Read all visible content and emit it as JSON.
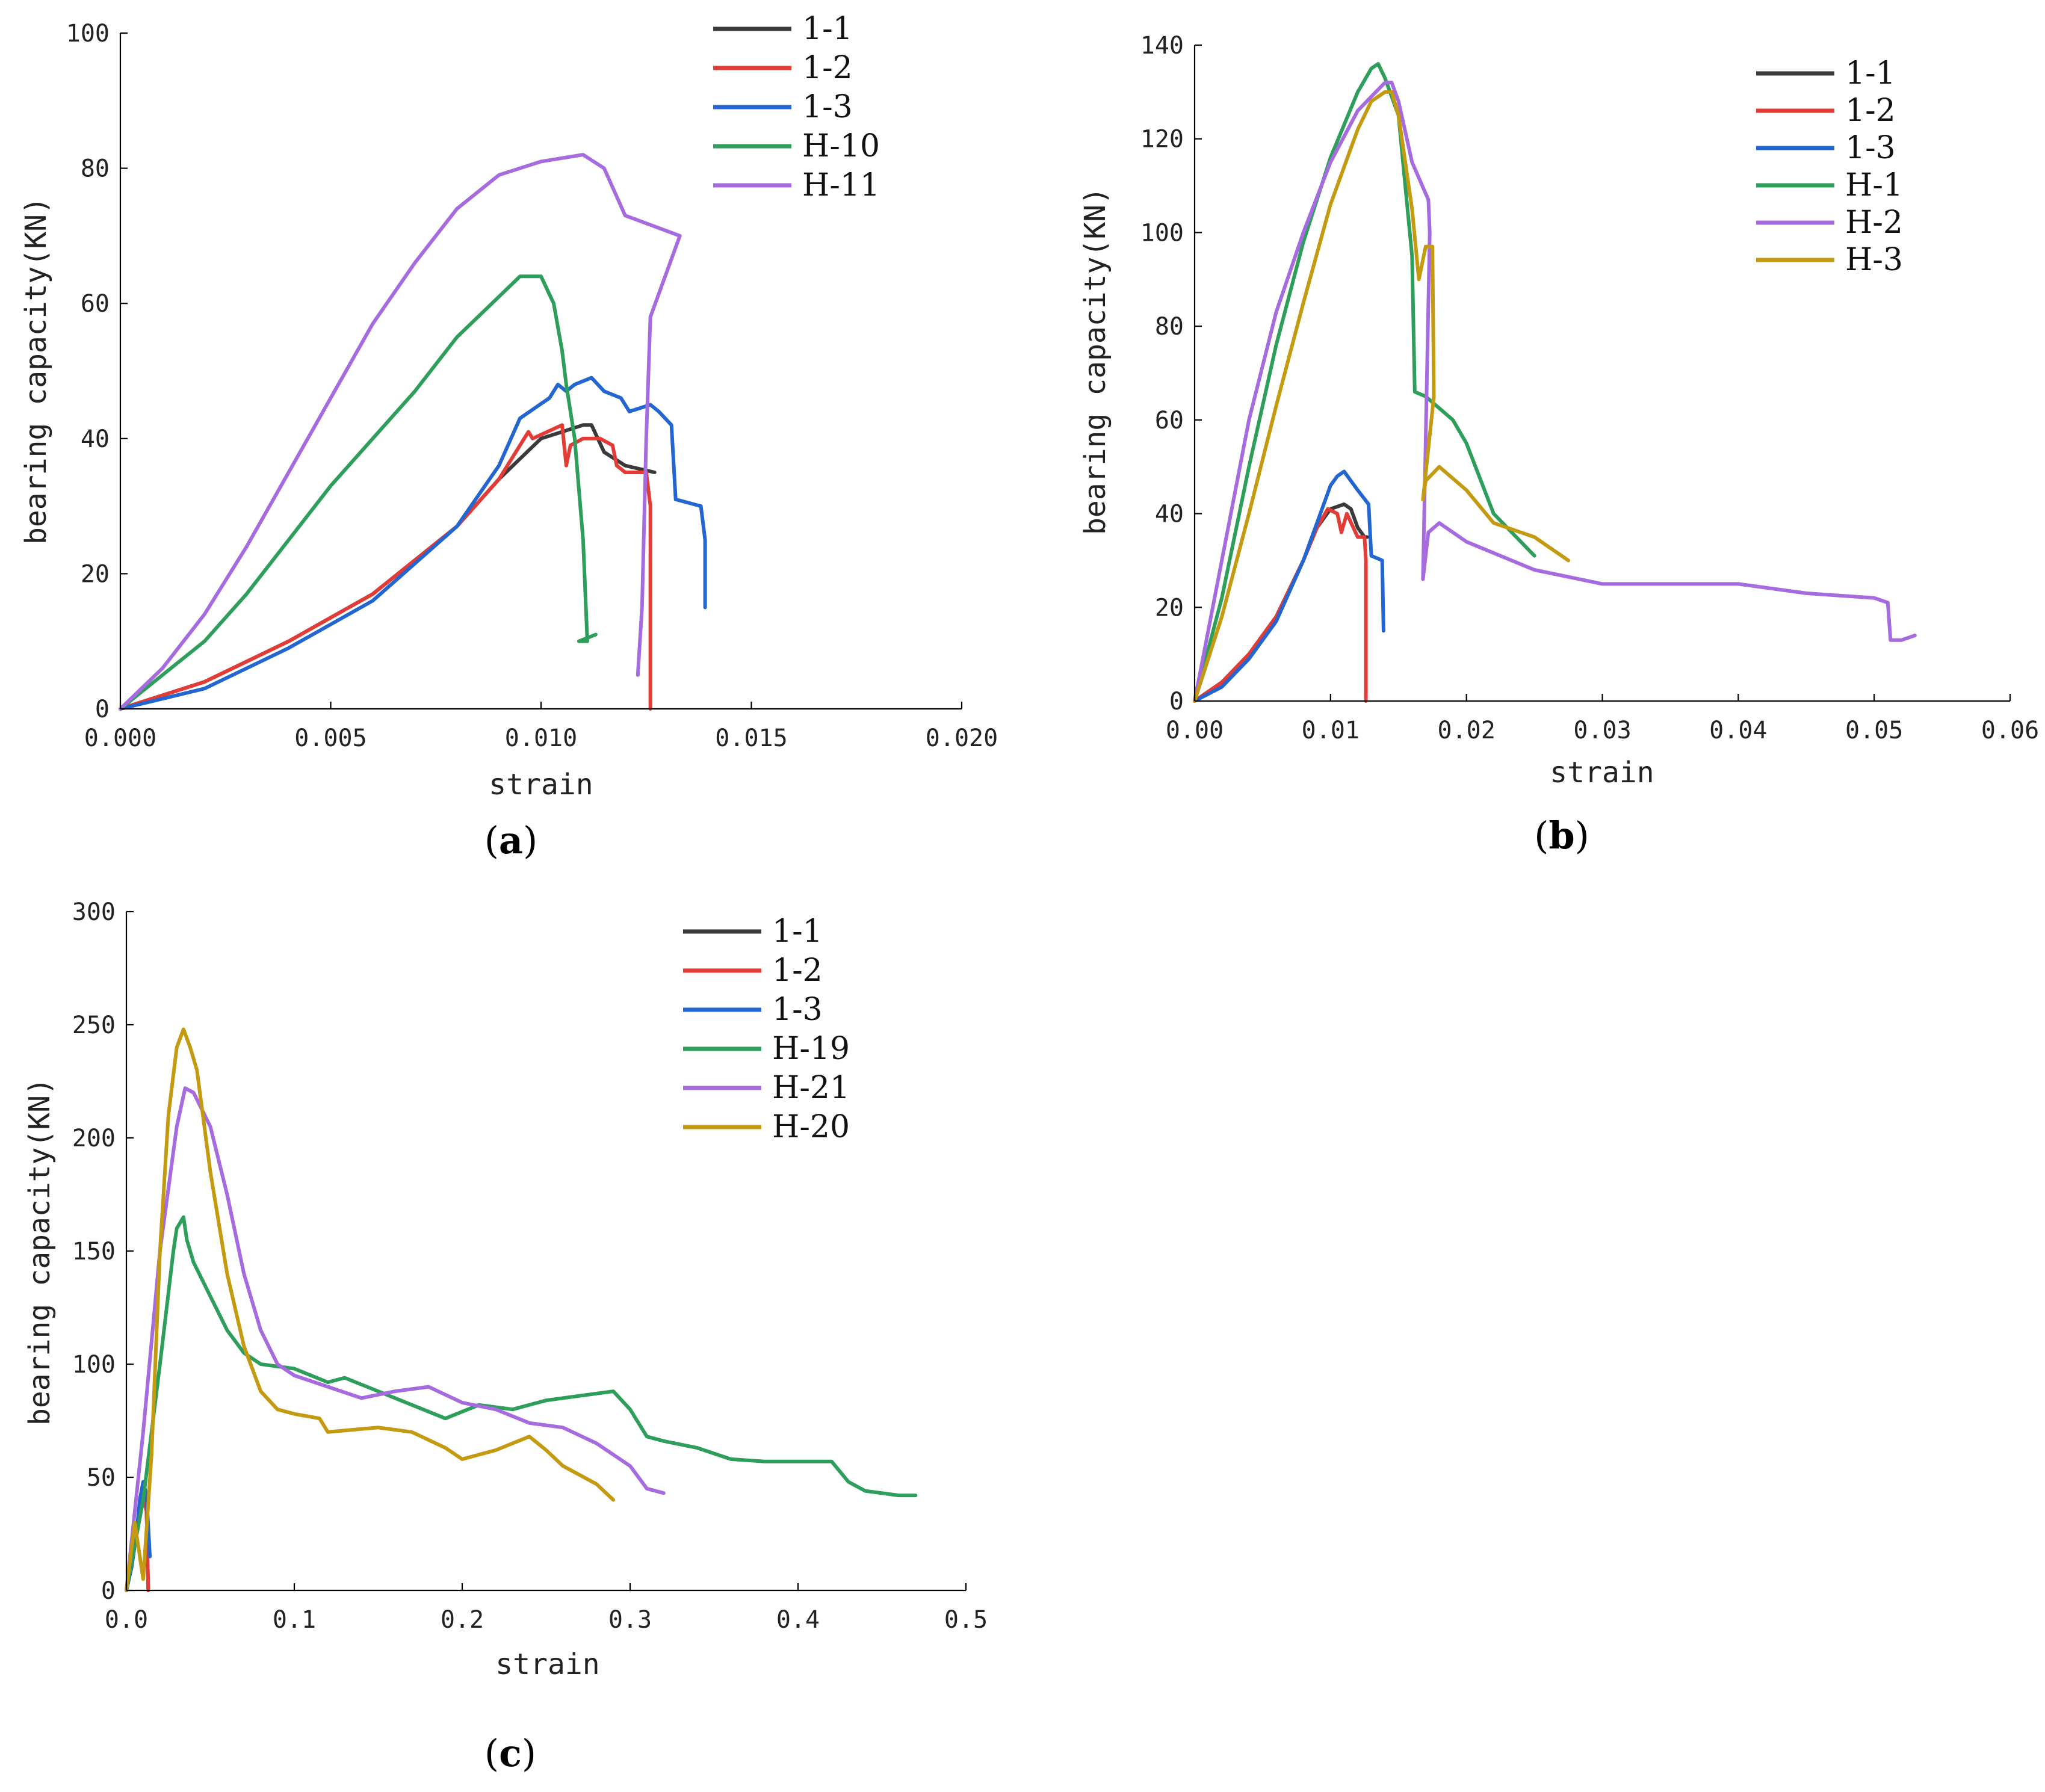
{
  "chart_data": [
    {
      "panel": "a",
      "caption_open": "(",
      "caption_letter": "a",
      "caption_close": ")",
      "type": "line",
      "xlabel": "strain",
      "ylabel": "bearing capacity(KN)",
      "xlim": [
        0,
        0.02
      ],
      "ylim": [
        0,
        100
      ],
      "xticks": [
        "0.000",
        "0.005",
        "0.010",
        "0.015",
        "0.020"
      ],
      "yticks": [
        "0",
        "20",
        "40",
        "60",
        "80",
        "100"
      ],
      "series": [
        {
          "name": "1-1",
          "color": "#3a3a3a",
          "x": [
            0,
            0.002,
            0.004,
            0.006,
            0.008,
            0.009,
            0.0095,
            0.01,
            0.0105,
            0.011,
            0.0112,
            0.0115,
            0.012,
            0.0127
          ],
          "y": [
            0,
            4,
            10,
            17,
            27,
            34,
            37,
            40,
            41,
            42,
            42,
            38,
            36,
            35
          ]
        },
        {
          "name": "1-2",
          "color": "#e33b36",
          "x": [
            0,
            0.002,
            0.004,
            0.006,
            0.008,
            0.009,
            0.0097,
            0.0098,
            0.0105,
            0.0106,
            0.0107,
            0.011,
            0.0114,
            0.0117,
            0.0118,
            0.012,
            0.0125,
            0.0126,
            0.0126
          ],
          "y": [
            0,
            4,
            10,
            17,
            27,
            34,
            41,
            40,
            42,
            36,
            39,
            40,
            40,
            39,
            36,
            35,
            35,
            30,
            0
          ]
        },
        {
          "name": "1-3",
          "color": "#2366d1",
          "x": [
            0,
            0.002,
            0.004,
            0.006,
            0.008,
            0.009,
            0.0095,
            0.0102,
            0.0104,
            0.0106,
            0.0108,
            0.0112,
            0.0115,
            0.0119,
            0.0121,
            0.0126,
            0.0128,
            0.0131,
            0.0132,
            0.0138,
            0.0139,
            0.0139
          ],
          "y": [
            0,
            3,
            9,
            16,
            27,
            36,
            43,
            46,
            48,
            47,
            48,
            49,
            47,
            46,
            44,
            45,
            44,
            42,
            31,
            30,
            25,
            15
          ]
        },
        {
          "name": "H-10",
          "color": "#2e9e5b",
          "x": [
            0,
            0.001,
            0.002,
            0.003,
            0.004,
            0.005,
            0.006,
            0.007,
            0.008,
            0.009,
            0.0095,
            0.01,
            0.0103,
            0.0105,
            0.0106,
            0.0108,
            0.011,
            0.0111,
            0.0109,
            0.0113
          ],
          "y": [
            0,
            5,
            10,
            17,
            25,
            33,
            40,
            47,
            55,
            61,
            64,
            64,
            60,
            53,
            48,
            40,
            25,
            10,
            10,
            11
          ]
        },
        {
          "name": "H-11",
          "color": "#a66bdf",
          "x": [
            0,
            0.001,
            0.002,
            0.003,
            0.004,
            0.005,
            0.006,
            0.007,
            0.008,
            0.009,
            0.01,
            0.011,
            0.0115,
            0.012,
            0.0133,
            0.0126,
            0.0125,
            0.0124,
            0.0123
          ],
          "y": [
            0,
            6,
            14,
            24,
            35,
            46,
            57,
            66,
            74,
            79,
            81,
            82,
            80,
            73,
            70,
            58,
            40,
            15,
            5
          ]
        }
      ]
    },
    {
      "panel": "b",
      "caption_open": "(",
      "caption_letter": "b",
      "caption_close": ")",
      "type": "line",
      "xlabel": "strain",
      "ylabel": "bearing capacity(KN)",
      "xlim": [
        0,
        0.06
      ],
      "ylim": [
        0,
        140
      ],
      "xticks": [
        "0.00",
        "0.01",
        "0.02",
        "0.03",
        "0.04",
        "0.05",
        "0.06"
      ],
      "yticks": [
        "0",
        "20",
        "40",
        "60",
        "80",
        "100",
        "120",
        "140"
      ],
      "series": [
        {
          "name": "1-1",
          "color": "#3a3a3a",
          "x": [
            0,
            0.002,
            0.004,
            0.006,
            0.008,
            0.009,
            0.01,
            0.011,
            0.0115,
            0.012,
            0.0125,
            0.0127
          ],
          "y": [
            0,
            4,
            10,
            18,
            30,
            37,
            41,
            42,
            41,
            37,
            35,
            35
          ]
        },
        {
          "name": "1-2",
          "color": "#e33b36",
          "x": [
            0,
            0.002,
            0.004,
            0.006,
            0.008,
            0.009,
            0.0098,
            0.0105,
            0.0108,
            0.0112,
            0.012,
            0.0125,
            0.0126,
            0.0126
          ],
          "y": [
            0,
            4,
            10,
            18,
            30,
            37,
            41,
            40,
            36,
            40,
            35,
            35,
            30,
            0
          ]
        },
        {
          "name": "1-3",
          "color": "#2366d1",
          "x": [
            0,
            0.002,
            0.004,
            0.006,
            0.008,
            0.009,
            0.01,
            0.0105,
            0.011,
            0.0115,
            0.012,
            0.0128,
            0.013,
            0.0138,
            0.0139
          ],
          "y": [
            0,
            3,
            9,
            17,
            30,
            38,
            46,
            48,
            49,
            47,
            45,
            42,
            31,
            30,
            15
          ]
        },
        {
          "name": "H-1",
          "color": "#2e9e5b",
          "x": [
            0,
            0.002,
            0.004,
            0.006,
            0.008,
            0.01,
            0.012,
            0.013,
            0.0135,
            0.014,
            0.015,
            0.0155,
            0.016,
            0.0162,
            0.017,
            0.019,
            0.02,
            0.022,
            0.025
          ],
          "y": [
            0,
            22,
            50,
            76,
            98,
            116,
            130,
            135,
            136,
            133,
            125,
            110,
            95,
            66,
            65,
            60,
            55,
            40,
            31
          ]
        },
        {
          "name": "H-2",
          "color": "#a66bdf",
          "x": [
            0,
            0.002,
            0.004,
            0.006,
            0.008,
            0.01,
            0.012,
            0.014,
            0.0145,
            0.015,
            0.016,
            0.0172,
            0.0173,
            0.0168,
            0.0172,
            0.018,
            0.02,
            0.025,
            0.03,
            0.035,
            0.04,
            0.045,
            0.05,
            0.051,
            0.0512,
            0.052,
            0.053
          ],
          "y": [
            0,
            30,
            60,
            83,
            100,
            115,
            126,
            132,
            132,
            128,
            115,
            107,
            100,
            26,
            36,
            38,
            34,
            28,
            25,
            25,
            25,
            23,
            22,
            21,
            13,
            13,
            14
          ]
        },
        {
          "name": "H-3",
          "color": "#c39a10",
          "x": [
            0,
            0.002,
            0.004,
            0.006,
            0.008,
            0.01,
            0.012,
            0.013,
            0.014,
            0.0145,
            0.015,
            0.016,
            0.0165,
            0.017,
            0.0175,
            0.0176,
            0.0168,
            0.017,
            0.018,
            0.02,
            0.022,
            0.025,
            0.0275
          ],
          "y": [
            0,
            18,
            40,
            63,
            85,
            106,
            122,
            128,
            130,
            130,
            125,
            105,
            90,
            97,
            97,
            65,
            43,
            47,
            50,
            45,
            38,
            35,
            30
          ]
        }
      ]
    },
    {
      "panel": "c",
      "caption_open": "(",
      "caption_letter": "c",
      "caption_close": ")",
      "type": "line",
      "xlabel": "strain",
      "ylabel": "bearing capacity(KN)",
      "xlim": [
        0,
        0.5
      ],
      "ylim": [
        0,
        300
      ],
      "xticks": [
        "0.0",
        "0.1",
        "0.2",
        "0.3",
        "0.4",
        "0.5"
      ],
      "yticks": [
        "0",
        "50",
        "100",
        "150",
        "200",
        "250",
        "300"
      ],
      "series": [
        {
          "name": "1-1",
          "color": "#3a3a3a",
          "x": [
            0,
            0.003,
            0.006,
            0.008,
            0.01,
            0.012,
            0.013
          ],
          "y": [
            0,
            10,
            25,
            38,
            42,
            35,
            0
          ]
        },
        {
          "name": "1-2",
          "color": "#e33b36",
          "x": [
            0,
            0.003,
            0.006,
            0.008,
            0.01,
            0.012,
            0.013
          ],
          "y": [
            0,
            10,
            25,
            38,
            41,
            35,
            0
          ]
        },
        {
          "name": "1-3",
          "color": "#2366d1",
          "x": [
            0,
            0.003,
            0.006,
            0.008,
            0.01,
            0.012,
            0.014
          ],
          "y": [
            0,
            10,
            25,
            40,
            48,
            42,
            15
          ]
        },
        {
          "name": "H-19",
          "color": "#2e9e5b",
          "x": [
            0,
            0.01,
            0.02,
            0.028,
            0.03,
            0.034,
            0.036,
            0.04,
            0.05,
            0.06,
            0.07,
            0.08,
            0.1,
            0.12,
            0.13,
            0.15,
            0.17,
            0.19,
            0.21,
            0.23,
            0.25,
            0.27,
            0.29,
            0.3,
            0.31,
            0.32,
            0.34,
            0.36,
            0.38,
            0.4,
            0.42,
            0.43,
            0.44,
            0.46,
            0.47
          ],
          "y": [
            0,
            40,
            100,
            150,
            160,
            165,
            155,
            145,
            130,
            115,
            105,
            100,
            98,
            92,
            94,
            88,
            82,
            76,
            82,
            80,
            84,
            86,
            88,
            80,
            68,
            66,
            63,
            58,
            57,
            57,
            57,
            48,
            44,
            42,
            42
          ]
        },
        {
          "name": "H-21",
          "color": "#a66bdf",
          "x": [
            0,
            0.01,
            0.02,
            0.03,
            0.035,
            0.04,
            0.05,
            0.06,
            0.07,
            0.08,
            0.09,
            0.1,
            0.12,
            0.14,
            0.16,
            0.18,
            0.2,
            0.22,
            0.24,
            0.26,
            0.28,
            0.3,
            0.31,
            0.32
          ],
          "y": [
            0,
            70,
            150,
            205,
            222,
            220,
            205,
            175,
            140,
            115,
            100,
            95,
            90,
            85,
            88,
            90,
            83,
            80,
            74,
            72,
            65,
            55,
            45,
            43
          ]
        },
        {
          "name": "H-20",
          "color": "#c39a10",
          "x": [
            0,
            0.005,
            0.01,
            0.015,
            0.02,
            0.025,
            0.03,
            0.034,
            0.038,
            0.042,
            0.05,
            0.06,
            0.07,
            0.08,
            0.09,
            0.1,
            0.115,
            0.12,
            0.15,
            0.17,
            0.19,
            0.2,
            0.22,
            0.24,
            0.25,
            0.26,
            0.28,
            0.29
          ],
          "y": [
            0,
            30,
            5,
            60,
            150,
            210,
            240,
            248,
            240,
            230,
            185,
            140,
            108,
            88,
            80,
            78,
            76,
            70,
            72,
            70,
            63,
            58,
            62,
            68,
            62,
            55,
            47,
            40
          ]
        }
      ]
    }
  ]
}
